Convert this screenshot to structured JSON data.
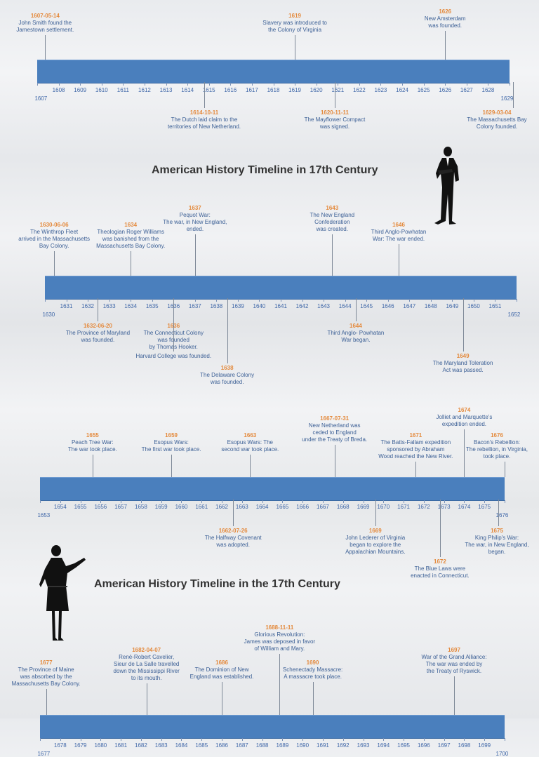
{
  "titles": {
    "title_1": "American History Timeline in 17th Century",
    "title_2": "American History Timeline in the 17th Century"
  },
  "timelines": [
    {
      "start": 1607,
      "end": 1629,
      "events": [
        {
          "date": "1607-05-14",
          "text": "John Smith found the\nJamestown settlement.",
          "year": 1607.37,
          "pos": "above",
          "level": 1
        },
        {
          "date": "1614-10-11",
          "text": "The Dutch laid claim to the\nterritories of New Netherland.",
          "year": 1614.78,
          "pos": "below",
          "level": 1
        },
        {
          "date": "1619",
          "text": "Slavery was introduced to\nthe Colony of Virginia",
          "year": 1619.0,
          "pos": "above",
          "level": 2
        },
        {
          "date": "1620-11-11",
          "text": "The Mayflower Compact\nwas signed.",
          "year": 1620.86,
          "pos": "below",
          "level": 1
        },
        {
          "date": "1626",
          "text": "New Amsterdam\nwas founded.",
          "year": 1626.0,
          "pos": "above",
          "level": 3
        },
        {
          "date": "1629-03-04",
          "text": "The Massachusetts Bay\nColony founded.",
          "year": 1629.17,
          "pos": "below",
          "level": 1
        }
      ]
    },
    {
      "start": 1630,
      "end": 1652,
      "events": [
        {
          "date": "1630-06-06",
          "text": "The Winthrop Fleet\narrived in the Massachusetts\nBay Colony.",
          "year": 1630.43,
          "pos": "above",
          "level": 1
        },
        {
          "date": "1632-06-20",
          "text": "The Province of Maryland\nwas founded.",
          "year": 1632.47,
          "pos": "below",
          "level": 1
        },
        {
          "date": "1634",
          "text": "Theologian Roger Williams\nwas banished from the\nMassachusetts Bay Colony.",
          "year": 1634.0,
          "pos": "above",
          "level": 1
        },
        {
          "date": "1636",
          "text": "The Connecticut Colony\nwas founded\nby Thomas Hooker.",
          "year": 1636.0,
          "pos": "below",
          "level": 1
        },
        {
          "date": "",
          "text": "Harvard College was founded.",
          "year": 1636.0,
          "pos": "below",
          "level": 2
        },
        {
          "date": "1637",
          "text": "Pequot War:\nThe war, in New England,\nended.",
          "year": 1637.0,
          "pos": "above",
          "level": 2
        },
        {
          "date": "1638",
          "text": "The Delaware Colony\nwas founded.",
          "year": 1638.5,
          "pos": "below",
          "level": 3
        },
        {
          "date": "1643",
          "text": "The New England\nConfederation\nwas created.",
          "year": 1643.4,
          "pos": "above",
          "level": 2
        },
        {
          "date": "1644",
          "text": "Third Anglo- Powhatan\nWar began.",
          "year": 1644.5,
          "pos": "below",
          "level": 1
        },
        {
          "date": "1646",
          "text": "Third Anglo-Powhatan\nWar: The war ended.",
          "year": 1646.5,
          "pos": "above",
          "level": 1
        },
        {
          "date": "1649",
          "text": "The Maryland Toleration\nAct was passed.",
          "year": 1649.5,
          "pos": "below",
          "level": 2
        }
      ]
    },
    {
      "start": 1653,
      "end": 1676,
      "events": [
        {
          "date": "1655",
          "text": "Peach Tree War:\nThe war took place.",
          "year": 1655.6,
          "pos": "above",
          "level": 1
        },
        {
          "date": "1659",
          "text": "Esopus Wars:\nThe first war took place.",
          "year": 1659.5,
          "pos": "above",
          "level": 1
        },
        {
          "date": "1662-07-26",
          "text": "The Halfway Covenant\nwas adopted.",
          "year": 1662.56,
          "pos": "below",
          "level": 1
        },
        {
          "date": "1663",
          "text": "Esopus Wars: The\nsecond war took place.",
          "year": 1663.4,
          "pos": "above",
          "level": 1
        },
        {
          "date": "1667-07-31",
          "text": "New Netherland was\nceded to England\nunder the Treaty of Breda.",
          "year": 1667.58,
          "pos": "above",
          "level": 2
        },
        {
          "date": "1669",
          "text": "John Lederer of Virginia\nbegan to explore the\nAppalachian Mountains.",
          "year": 1669.6,
          "pos": "below",
          "level": 1
        },
        {
          "date": "1671",
          "text": "The Batts-Fallam expedition\nsponsored by Abraham\nWood reached the New River.",
          "year": 1671.6,
          "pos": "above",
          "level": 1
        },
        {
          "date": "1672",
          "text": "The Blue Laws were\nenacted in Connecticut.",
          "year": 1672.8,
          "pos": "below",
          "level": 2
        },
        {
          "date": "1674",
          "text": "Jolliet and Marquette's\nexpedition ended.",
          "year": 1674.0,
          "pos": "above",
          "level": 3
        },
        {
          "date": "1675",
          "text": "King Philip's War:\nThe war, in New England,\nbegan.",
          "year": 1675.7,
          "pos": "below",
          "level": 1
        },
        {
          "date": "1676",
          "text": "Bacon's Rebellion:\nThe rebellion, in Virginia,\ntook place.",
          "year": 1676.0,
          "pos": "above",
          "level": 1
        }
      ]
    },
    {
      "start": 1677,
      "end": 1700,
      "events": [
        {
          "date": "1677",
          "text": "The Province of Maine\nwas absorbed by the\nMassachusetts Bay Colony.",
          "year": 1677.3,
          "pos": "above",
          "level": 1
        },
        {
          "date": "1682-04-07",
          "text": "René-Robert Cavelier,\nSieur de La Salle travelled\ndown the Mississippi River\nto its mouth.",
          "year": 1682.27,
          "pos": "above",
          "level": 2
        },
        {
          "date": "1686",
          "text": "The Dominion of New\nEngland was established.",
          "year": 1686.0,
          "pos": "above",
          "level": 1
        },
        {
          "date": "1688-11-11",
          "text": "Glorious Revolution:\nJames was deposed in favor\nof William and Mary.",
          "year": 1688.86,
          "pos": "above",
          "level": 3
        },
        {
          "date": "1690",
          "text": "Schenectady Massacre:\nA massacre took place.",
          "year": 1690.5,
          "pos": "above",
          "level": 1
        },
        {
          "date": "1697",
          "text": "War of the Grand Alliance:\nThe war was ended by\nthe Treaty of Ryswick.",
          "year": 1697.5,
          "pos": "above",
          "level": 2
        }
      ]
    }
  ]
}
